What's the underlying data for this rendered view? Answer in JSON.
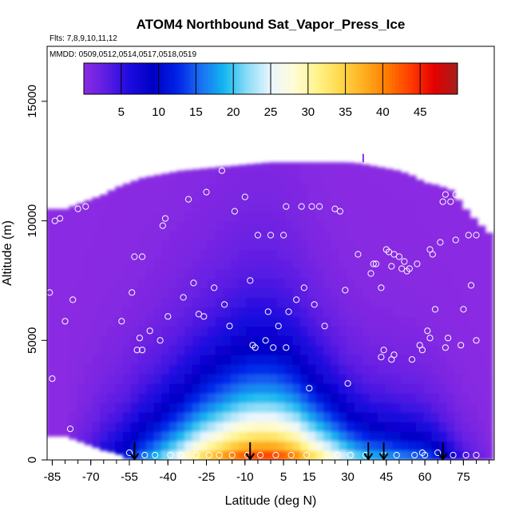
{
  "chart_data": {
    "type": "heatmap",
    "title": "ATOM4 Northbound Sat_Vapor_Press_Ice",
    "flights_label": "Flts: 7,8,9,10,11,12",
    "dates_label": "MMDD: 0509,0512,0514,0517,0518,0519",
    "xlabel": "Latitude (deg N)",
    "ylabel": "Altitude (m)",
    "xlim": [
      -87,
      87
    ],
    "ylim": [
      0,
      17300
    ],
    "x_ticks": [
      -85,
      -70,
      -55,
      -40,
      -25,
      -10,
      5,
      15,
      30,
      45,
      60,
      75
    ],
    "y_ticks": [
      0,
      5000,
      10000,
      15000
    ],
    "grid": false,
    "colorbar": {
      "position": "top",
      "range": [
        0,
        50
      ],
      "tick_values": [
        5,
        10,
        15,
        20,
        25,
        30,
        35,
        40,
        45
      ],
      "tick_labels": [
        "5",
        "10",
        "15",
        "20",
        "25",
        "30",
        "35",
        "40",
        "45"
      ],
      "colors": [
        "#8a2be2",
        "#5b1ce3",
        "#1a0adf",
        "#0000c4",
        "#0022e8",
        "#1a6ef2",
        "#12b6f0",
        "#8bdcf7",
        "#eaf6ff",
        "#fffcd6",
        "#fff38a",
        "#ffd84a",
        "#ffae1f",
        "#ff7a00",
        "#ff3c00",
        "#e50000",
        "#a51e1e"
      ]
    },
    "profile_latitudes": [
      -86,
      -80,
      -75,
      -70,
      -65,
      -60,
      -55,
      -50,
      -45,
      -40,
      -35,
      -30,
      -25,
      -20,
      -15,
      -10,
      -5,
      0,
      5,
      10,
      15,
      20,
      25,
      30,
      35,
      40,
      45,
      50,
      55,
      60,
      65,
      70,
      75,
      80,
      85
    ],
    "profile_top_altitudes": [
      10500,
      10500,
      10700,
      10900,
      11100,
      11400,
      11600,
      11800,
      11900,
      12000,
      12100,
      12150,
      12200,
      12250,
      12300,
      12350,
      12400,
      12450,
      12450,
      12450,
      12450,
      12450,
      12450,
      12450,
      12400,
      12300,
      12200,
      12100,
      11900,
      11600,
      11500,
      11300,
      10600,
      10000,
      9500
    ],
    "profile_bottom_altitudes": [
      1000,
      1000,
      800,
      600,
      400,
      300,
      0,
      0,
      0,
      0,
      0,
      0,
      0,
      0,
      0,
      0,
      0,
      0,
      0,
      0,
      0,
      0,
      0,
      0,
      0,
      0,
      0,
      0,
      0,
      0,
      0,
      0,
      0,
      0,
      0
    ],
    "surface_values": [
      0,
      0,
      3,
      5,
      8,
      10,
      13,
      17,
      20,
      24,
      28,
      33,
      37,
      40,
      43,
      45,
      46,
      46,
      45,
      42,
      37,
      33,
      29,
      25,
      22,
      20,
      19,
      18,
      17,
      16,
      13,
      9,
      5,
      3,
      1
    ],
    "scale_heights_m": [
      1400,
      1400,
      1600,
      1800,
      1900,
      2000,
      2100,
      2200,
      2300,
      2400,
      2500,
      2600,
      2700,
      2800,
      2900,
      3000,
      3000,
      3000,
      2900,
      2800,
      2600,
      2400,
      2200,
      2000,
      1900,
      1800,
      1800,
      1700,
      1700,
      1600,
      1500,
      1400,
      1300,
      1200,
      1100
    ],
    "flight_observations": [
      {
        "lat": -86,
        "alt": 7000
      },
      {
        "lat": -85,
        "alt": 3400
      },
      {
        "lat": -84,
        "alt": 10000
      },
      {
        "lat": -82,
        "alt": 10100
      },
      {
        "lat": -80,
        "alt": 5800
      },
      {
        "lat": -78,
        "alt": 1300
      },
      {
        "lat": -77,
        "alt": 6700
      },
      {
        "lat": -75,
        "alt": 10500
      },
      {
        "lat": -72,
        "alt": 10600
      },
      {
        "lat": -68,
        "alt": 11200
      },
      {
        "lat": -66,
        "alt": 11300
      },
      {
        "lat": -63,
        "alt": 11500
      },
      {
        "lat": -58,
        "alt": 5800
      },
      {
        "lat": -55,
        "alt": 300
      },
      {
        "lat": -54,
        "alt": 7000
      },
      {
        "lat": -53,
        "alt": 8500
      },
      {
        "lat": -52,
        "alt": 4600
      },
      {
        "lat": -51,
        "alt": 5100
      },
      {
        "lat": -50,
        "alt": 8500
      },
      {
        "lat": -50,
        "alt": 4600
      },
      {
        "lat": -49,
        "alt": 200
      },
      {
        "lat": -47,
        "alt": 5400
      },
      {
        "lat": -45,
        "alt": 200
      },
      {
        "lat": -43,
        "alt": 5000
      },
      {
        "lat": -42,
        "alt": 9800
      },
      {
        "lat": -41,
        "alt": 10100
      },
      {
        "lat": -40,
        "alt": 6000
      },
      {
        "lat": -39,
        "alt": 200
      },
      {
        "lat": -35,
        "alt": 200
      },
      {
        "lat": -34,
        "alt": 6800
      },
      {
        "lat": -32,
        "alt": 10900
      },
      {
        "lat": -30,
        "alt": 7400
      },
      {
        "lat": -29,
        "alt": 200
      },
      {
        "lat": -28,
        "alt": 6100
      },
      {
        "lat": -26,
        "alt": 6000
      },
      {
        "lat": -25,
        "alt": 11200
      },
      {
        "lat": -24,
        "alt": 200
      },
      {
        "lat": -22,
        "alt": 7200
      },
      {
        "lat": -20,
        "alt": 200
      },
      {
        "lat": -19,
        "alt": 12100
      },
      {
        "lat": -18,
        "alt": 6500
      },
      {
        "lat": -16,
        "alt": 5600
      },
      {
        "lat": -15,
        "alt": 200
      },
      {
        "lat": -14,
        "alt": 10400
      },
      {
        "lat": -10,
        "alt": 11000
      },
      {
        "lat": -9,
        "alt": 200
      },
      {
        "lat": -8,
        "alt": 7500
      },
      {
        "lat": -7,
        "alt": 4800
      },
      {
        "lat": -6,
        "alt": 4700
      },
      {
        "lat": -5,
        "alt": 9400
      },
      {
        "lat": -4,
        "alt": 200
      },
      {
        "lat": -2,
        "alt": 5000
      },
      {
        "lat": -1,
        "alt": 6200
      },
      {
        "lat": 0,
        "alt": 9400
      },
      {
        "lat": 1,
        "alt": 4700
      },
      {
        "lat": 2,
        "alt": 200
      },
      {
        "lat": 3,
        "alt": 5600
      },
      {
        "lat": 5,
        "alt": 9400
      },
      {
        "lat": 6,
        "alt": 10600
      },
      {
        "lat": 6,
        "alt": 4700
      },
      {
        "lat": 7,
        "alt": 6200
      },
      {
        "lat": 8,
        "alt": 200
      },
      {
        "lat": 10,
        "alt": 6700
      },
      {
        "lat": 12,
        "alt": 10600
      },
      {
        "lat": 13,
        "alt": 7200
      },
      {
        "lat": 14,
        "alt": 200
      },
      {
        "lat": 15,
        "alt": 3000
      },
      {
        "lat": 16,
        "alt": 10600
      },
      {
        "lat": 17,
        "alt": 6500
      },
      {
        "lat": 19,
        "alt": 10600
      },
      {
        "lat": 21,
        "alt": 5600
      },
      {
        "lat": 22,
        "alt": 200
      },
      {
        "lat": 25,
        "alt": 10500
      },
      {
        "lat": 26,
        "alt": 200
      },
      {
        "lat": 27,
        "alt": 10400
      },
      {
        "lat": 29,
        "alt": 7100
      },
      {
        "lat": 30,
        "alt": 3200
      },
      {
        "lat": 31,
        "alt": 200
      },
      {
        "lat": 34,
        "alt": 8600
      },
      {
        "lat": 37,
        "alt": 200
      },
      {
        "lat": 39,
        "alt": 7800
      },
      {
        "lat": 40,
        "alt": 8200
      },
      {
        "lat": 41,
        "alt": 8200
      },
      {
        "lat": 43,
        "alt": 7200
      },
      {
        "lat": 43,
        "alt": 4300
      },
      {
        "lat": 44,
        "alt": 200
      },
      {
        "lat": 44,
        "alt": 4600
      },
      {
        "lat": 45,
        "alt": 8800
      },
      {
        "lat": 46,
        "alt": 8700
      },
      {
        "lat": 47,
        "alt": 8100
      },
      {
        "lat": 47,
        "alt": 4200
      },
      {
        "lat": 48,
        "alt": 8600
      },
      {
        "lat": 48,
        "alt": 4400
      },
      {
        "lat": 49,
        "alt": 200
      },
      {
        "lat": 50,
        "alt": 8500
      },
      {
        "lat": 51,
        "alt": 8000
      },
      {
        "lat": 52,
        "alt": 8300
      },
      {
        "lat": 53,
        "alt": 7900
      },
      {
        "lat": 54,
        "alt": 8000
      },
      {
        "lat": 55,
        "alt": 4200
      },
      {
        "lat": 56,
        "alt": 200
      },
      {
        "lat": 57,
        "alt": 8200
      },
      {
        "lat": 58,
        "alt": 4800
      },
      {
        "lat": 59,
        "alt": 4600
      },
      {
        "lat": 59,
        "alt": 300
      },
      {
        "lat": 60,
        "alt": 200
      },
      {
        "lat": 61,
        "alt": 5400
      },
      {
        "lat": 62,
        "alt": 5100
      },
      {
        "lat": 62,
        "alt": 8800
      },
      {
        "lat": 63,
        "alt": 8600
      },
      {
        "lat": 64,
        "alt": 6300
      },
      {
        "lat": 65,
        "alt": 300
      },
      {
        "lat": 66,
        "alt": 9100
      },
      {
        "lat": 67,
        "alt": 10800
      },
      {
        "lat": 68,
        "alt": 4700
      },
      {
        "lat": 68,
        "alt": 11100
      },
      {
        "lat": 69,
        "alt": 5100
      },
      {
        "lat": 70,
        "alt": 10800
      },
      {
        "lat": 71,
        "alt": 200
      },
      {
        "lat": 72,
        "alt": 11100
      },
      {
        "lat": 72,
        "alt": 9200
      },
      {
        "lat": 74,
        "alt": 4800
      },
      {
        "lat": 75,
        "alt": 6300
      },
      {
        "lat": 76,
        "alt": 200
      },
      {
        "lat": 77,
        "alt": 9400
      },
      {
        "lat": 78,
        "alt": 7300
      },
      {
        "lat": 80,
        "alt": 9400
      },
      {
        "lat": 80,
        "alt": 5000
      },
      {
        "lat": 80,
        "alt": 200
      }
    ],
    "ascent_arrow_latitudes": [
      -53,
      -8,
      38,
      44,
      67
    ],
    "marker_latitude": 36,
    "marker_altitude_range": [
      12450,
      12800
    ]
  }
}
